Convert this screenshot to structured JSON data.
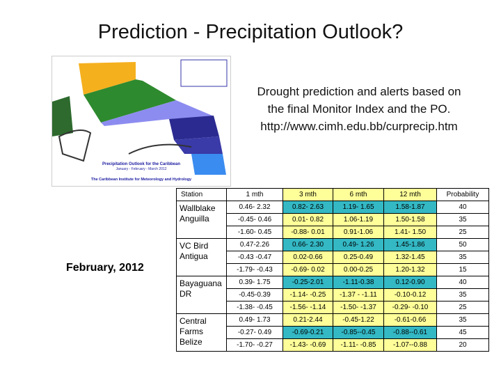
{
  "title": "Prediction - Precipitation Outlook?",
  "description": [
    "Drought prediction and alerts based on",
    "the final Monitor Index and the PO.",
    "http://www.cimh.edu.bb/curprecip.htm"
  ],
  "date": "February, 2012",
  "map": {
    "caption": [
      "Precipitation Outlook for the Caribbean",
      "January - February - March 2012",
      "Prepared by",
      "The Caribbean Institute for Meteorology and Hydrology"
    ],
    "colors": {
      "above": "#f5b01e",
      "green": "#2e8a2e",
      "lilac": "#8c8cf0",
      "navy": "#2a2a90",
      "blue": "#3a3aa8",
      "light": "#3a8cf0"
    }
  },
  "colors": {
    "teal": "#33b8c4",
    "yellow": "#ffff99"
  },
  "table": {
    "headers": [
      "Station",
      "1 mth",
      "3 mth",
      "6 mth",
      "12 mth",
      "Probability"
    ],
    "stations": [
      {
        "name": "Wallblake Anguilla",
        "rows": [
          [
            "0.46- 2.32",
            "0.82- 2.63",
            "1.19- 1.65",
            "1.58-1.87",
            "40"
          ],
          [
            "-0.45- 0.46",
            "0.01- 0.82",
            "1.06-1.19",
            "1.50-1.58",
            "35"
          ],
          [
            "-1.60- 0.45",
            "-0.88- 0.01",
            "0.91-1.06",
            "1.41- 1.50",
            "25"
          ]
        ],
        "highlight": 0
      },
      {
        "name": "VC Bird Antigua",
        "rows": [
          [
            "0.47-2.26",
            "0.66- 2.30",
            "0.49- 1.26",
            "1.45-1.86",
            "50"
          ],
          [
            "-0.43 -0.47",
            "0.02-0.66",
            "0.25-0.49",
            "1.32-1.45",
            "35"
          ],
          [
            "-1.79- -0.43",
            "-0.69- 0.02",
            "0.00-0.25",
            "1.20-1.32",
            "15"
          ]
        ],
        "highlight": 0
      },
      {
        "name": "Bayaguana DR",
        "rows": [
          [
            "0.39- 1.75",
            "-0.25-2.01",
            "-1.11-0.38",
            "0.12-0.90",
            "40"
          ],
          [
            "-0.45-0.39",
            "-1.14- -0.25",
            "-1.37 - -1.11",
            "-0.10-0.12",
            "35"
          ],
          [
            "-1.38- -0.45",
            "-1.56- -1.14",
            "-1.50- -1.37",
            "-0.29- -0.10",
            "25"
          ]
        ],
        "highlight": 0
      },
      {
        "name": "Central Farms Belize",
        "rows": [
          [
            "0.49- 1.73",
            "0.21-2.44",
            "-0.45-1.22",
            "-0.61-0.66",
            "35"
          ],
          [
            "-0.27- 0.49",
            "-0.69-0.21",
            "-0.85--0.45",
            "-0.88--0.61",
            "45"
          ],
          [
            "-1.70- -0.27",
            "-1.43- -0.69",
            "-1.11- -0.85",
            "-1.07--0.88",
            "20"
          ]
        ],
        "highlight": 1
      }
    ]
  }
}
